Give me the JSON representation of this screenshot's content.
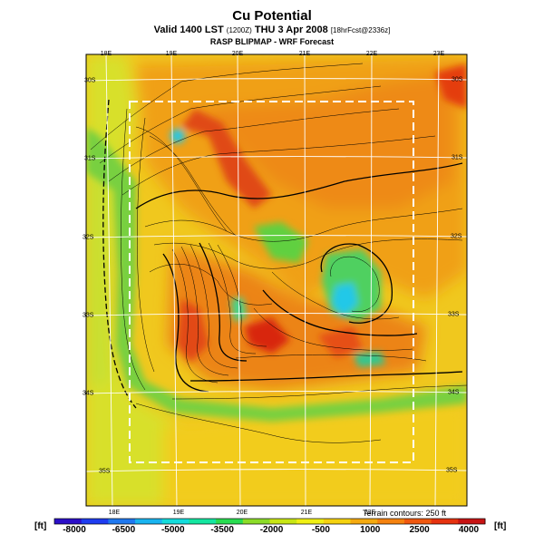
{
  "header": {
    "title": "Cu Potential",
    "valid_prefix": "Valid 1400 LST",
    "valid_small": "(1200Z)",
    "valid_date": "THU 3 Apr 2008",
    "valid_fcst": "[18hrFcst@2336z]",
    "subtitle": "RASP BLIPMAP - WRF Forecast"
  },
  "map": {
    "lon_labels_top": [
      "18E",
      "19E",
      "20E",
      "21E",
      "22E",
      "23E"
    ],
    "lon_labels_bottom": [
      "18E",
      "19E",
      "20E",
      "21E",
      "22E"
    ],
    "lat_labels_left": [
      "30S",
      "31S",
      "32S",
      "33S",
      "34S",
      "35S"
    ],
    "lat_labels_right": [
      "30S",
      "31S",
      "32S",
      "33S",
      "34S",
      "35S"
    ],
    "terrain_note": "Terrain contours: 250 ft"
  },
  "colorbar": {
    "unit_left": "[ft]",
    "unit_right": "[ft]",
    "tick_labels": [
      "-8000",
      "-6500",
      "-5000",
      "-3500",
      "-2000",
      "-500",
      "1000",
      "2500",
      "4000"
    ],
    "colors": [
      "#2b0fc8",
      "#1e3cf0",
      "#1e78f0",
      "#19b4f0",
      "#14dcdc",
      "#14e6a0",
      "#28dc50",
      "#8cdc28",
      "#c8e614",
      "#f0f014",
      "#f5d20f",
      "#f5aa0f",
      "#f5820f",
      "#f0580f",
      "#e6320f",
      "#c81414"
    ]
  }
}
